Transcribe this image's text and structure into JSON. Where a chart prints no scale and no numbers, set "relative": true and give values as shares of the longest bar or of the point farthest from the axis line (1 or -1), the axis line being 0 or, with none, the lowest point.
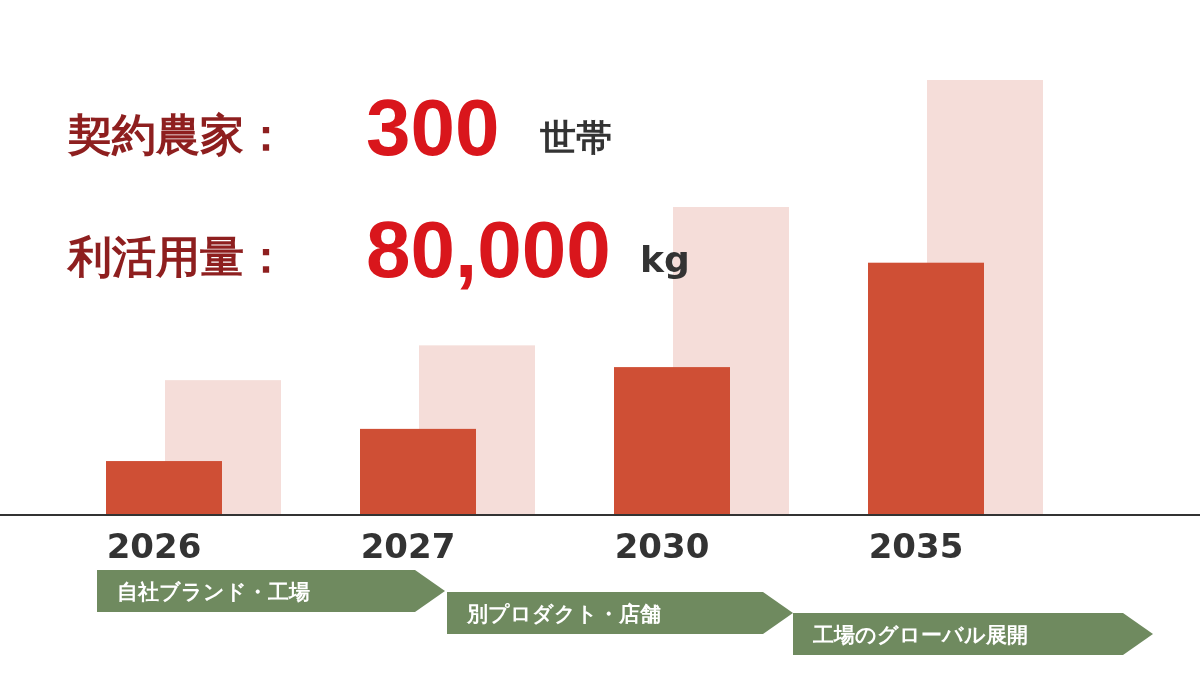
{
  "chart_data": {
    "type": "bar",
    "relative": true,
    "categories": [
      "2026",
      "2027",
      "2030",
      "2035"
    ],
    "series": [
      {
        "color": "#cf4f35",
        "values": [
          0.124,
          0.198,
          0.34,
          0.58
        ]
      },
      {
        "color": "#f5ddd9",
        "values": [
          0.31,
          0.39,
          0.708,
          1
        ]
      }
    ],
    "annotations": [
      "契約農家：",
      "300",
      "世帯",
      "利活用量：",
      "80,000",
      "kg",
      "自社ブランド・工場",
      "別プロダクト・店舗",
      "工場のグローバル展開"
    ]
  }
}
